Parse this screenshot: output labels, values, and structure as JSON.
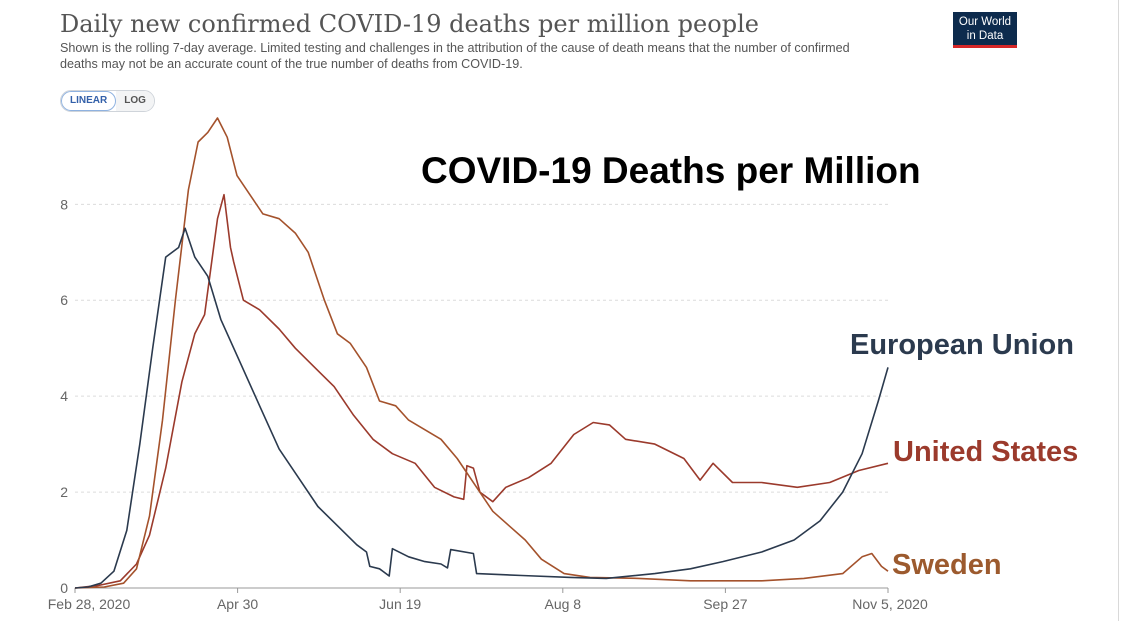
{
  "header": {
    "title": "Daily new confirmed COVID-19 deaths per million people",
    "subtitle": "Shown is the rolling 7-day average. Limited testing and challenges in the attribution of the cause of death means that the number of confirmed deaths may not be an accurate count of the true number of deaths from COVID-19.",
    "logo_line1": "Our World",
    "logo_line2": "in Data"
  },
  "controls": {
    "linear_label": "LINEAR",
    "log_label": "LOG",
    "selected": "LINEAR"
  },
  "overlay": {
    "headline": "COVID-19 Deaths per Million",
    "labels": {
      "eu": "European Union",
      "us": "United States",
      "se": "Sweden"
    }
  },
  "colors": {
    "eu": "#2b3a4e",
    "us": "#9b3a2c",
    "se": "#a4522c",
    "grid": "#dcdcdc",
    "axis_text": "#666666"
  },
  "chart_data": {
    "type": "line",
    "title": "Daily new confirmed COVID-19 deaths per million people",
    "subtitle": "Shown is the rolling 7-day average.",
    "x_axis": {
      "type": "date",
      "range": [
        "2020-02-28",
        "2020-11-05"
      ],
      "tick_labels": [
        "Feb 28, 2020",
        "Apr 30",
        "Jun 19",
        "Aug 8",
        "Sep 27",
        "Nov 5, 2020"
      ]
    },
    "y_axis": {
      "range": [
        0,
        9.8
      ],
      "ticks": [
        0,
        2,
        4,
        6,
        8
      ]
    },
    "grid": true,
    "legend": "inline-labels-right",
    "series": [
      {
        "name": "European Union",
        "key": "eu",
        "points": [
          [
            "2020-02-28",
            0
          ],
          [
            "2020-03-03",
            0.02
          ],
          [
            "2020-03-07",
            0.1
          ],
          [
            "2020-03-11",
            0.35
          ],
          [
            "2020-03-15",
            1.2
          ],
          [
            "2020-03-19",
            3.0
          ],
          [
            "2020-03-23",
            5.0
          ],
          [
            "2020-03-27",
            6.9
          ],
          [
            "2020-03-31",
            7.1
          ],
          [
            "2020-04-02",
            7.5
          ],
          [
            "2020-04-05",
            6.9
          ],
          [
            "2020-04-09",
            6.5
          ],
          [
            "2020-04-13",
            5.6
          ],
          [
            "2020-04-19",
            4.7
          ],
          [
            "2020-04-25",
            3.8
          ],
          [
            "2020-05-01",
            2.9
          ],
          [
            "2020-05-07",
            2.3
          ],
          [
            "2020-05-13",
            1.7
          ],
          [
            "2020-05-19",
            1.3
          ],
          [
            "2020-05-25",
            0.9
          ],
          [
            "2020-05-28",
            0.75
          ],
          [
            "2020-05-29",
            0.45
          ],
          [
            "2020-06-01",
            0.4
          ],
          [
            "2020-06-04",
            0.25
          ],
          [
            "2020-06-05",
            0.82
          ],
          [
            "2020-06-10",
            0.65
          ],
          [
            "2020-06-15",
            0.55
          ],
          [
            "2020-06-20",
            0.5
          ],
          [
            "2020-06-22",
            0.42
          ],
          [
            "2020-06-23",
            0.8
          ],
          [
            "2020-06-30",
            0.72
          ],
          [
            "2020-07-01",
            0.3
          ],
          [
            "2020-07-15",
            0.26
          ],
          [
            "2020-07-30",
            0.22
          ],
          [
            "2020-08-10",
            0.2
          ],
          [
            "2020-08-25",
            0.3
          ],
          [
            "2020-09-05",
            0.4
          ],
          [
            "2020-09-15",
            0.55
          ],
          [
            "2020-09-27",
            0.75
          ],
          [
            "2020-10-07",
            1.0
          ],
          [
            "2020-10-15",
            1.4
          ],
          [
            "2020-10-22",
            2.0
          ],
          [
            "2020-10-28",
            2.8
          ],
          [
            "2020-11-02",
            3.9
          ],
          [
            "2020-11-05",
            4.6
          ]
        ]
      },
      {
        "name": "United States",
        "key": "us",
        "points": [
          [
            "2020-02-28",
            0
          ],
          [
            "2020-03-06",
            0.05
          ],
          [
            "2020-03-13",
            0.15
          ],
          [
            "2020-03-18",
            0.5
          ],
          [
            "2020-03-22",
            1.1
          ],
          [
            "2020-03-27",
            2.5
          ],
          [
            "2020-04-01",
            4.3
          ],
          [
            "2020-04-05",
            5.3
          ],
          [
            "2020-04-08",
            5.7
          ],
          [
            "2020-04-12",
            7.7
          ],
          [
            "2020-04-14",
            8.2
          ],
          [
            "2020-04-16",
            7.1
          ],
          [
            "2020-04-17",
            6.8
          ],
          [
            "2020-04-20",
            6.0
          ],
          [
            "2020-04-25",
            5.8
          ],
          [
            "2020-05-01",
            5.4
          ],
          [
            "2020-05-06",
            5.0
          ],
          [
            "2020-05-12",
            4.6
          ],
          [
            "2020-05-18",
            4.2
          ],
          [
            "2020-05-24",
            3.6
          ],
          [
            "2020-05-30",
            3.1
          ],
          [
            "2020-06-05",
            2.8
          ],
          [
            "2020-06-12",
            2.6
          ],
          [
            "2020-06-18",
            2.1
          ],
          [
            "2020-06-24",
            1.9
          ],
          [
            "2020-06-27",
            1.85
          ],
          [
            "2020-06-28",
            2.55
          ],
          [
            "2020-06-30",
            2.5
          ],
          [
            "2020-07-02",
            2.0
          ],
          [
            "2020-07-06",
            1.8
          ],
          [
            "2020-07-10",
            2.1
          ],
          [
            "2020-07-17",
            2.3
          ],
          [
            "2020-07-24",
            2.6
          ],
          [
            "2020-07-31",
            3.2
          ],
          [
            "2020-08-06",
            3.45
          ],
          [
            "2020-08-11",
            3.4
          ],
          [
            "2020-08-16",
            3.1
          ],
          [
            "2020-08-25",
            3.0
          ],
          [
            "2020-09-03",
            2.7
          ],
          [
            "2020-09-08",
            2.25
          ],
          [
            "2020-09-12",
            2.6
          ],
          [
            "2020-09-18",
            2.2
          ],
          [
            "2020-09-27",
            2.2
          ],
          [
            "2020-10-08",
            2.1
          ],
          [
            "2020-10-18",
            2.2
          ],
          [
            "2020-10-27",
            2.45
          ],
          [
            "2020-11-05",
            2.6
          ]
        ]
      },
      {
        "name": "Sweden",
        "key": "se",
        "points": [
          [
            "2020-02-28",
            0
          ],
          [
            "2020-03-08",
            0.02
          ],
          [
            "2020-03-14",
            0.1
          ],
          [
            "2020-03-18",
            0.4
          ],
          [
            "2020-03-22",
            1.5
          ],
          [
            "2020-03-26",
            3.5
          ],
          [
            "2020-03-30",
            6.0
          ],
          [
            "2020-04-03",
            8.3
          ],
          [
            "2020-04-06",
            9.3
          ],
          [
            "2020-04-09",
            9.5
          ],
          [
            "2020-04-12",
            9.8
          ],
          [
            "2020-04-15",
            9.4
          ],
          [
            "2020-04-18",
            8.6
          ],
          [
            "2020-04-22",
            8.2
          ],
          [
            "2020-04-26",
            7.8
          ],
          [
            "2020-05-01",
            7.7
          ],
          [
            "2020-05-06",
            7.4
          ],
          [
            "2020-05-10",
            7.0
          ],
          [
            "2020-05-15",
            6.0
          ],
          [
            "2020-05-19",
            5.3
          ],
          [
            "2020-05-23",
            5.1
          ],
          [
            "2020-05-28",
            4.6
          ],
          [
            "2020-06-01",
            3.9
          ],
          [
            "2020-06-06",
            3.8
          ],
          [
            "2020-06-10",
            3.5
          ],
          [
            "2020-06-15",
            3.3
          ],
          [
            "2020-06-20",
            3.1
          ],
          [
            "2020-06-25",
            2.7
          ],
          [
            "2020-07-01",
            2.1
          ],
          [
            "2020-07-06",
            1.6
          ],
          [
            "2020-07-11",
            1.3
          ],
          [
            "2020-07-16",
            1.0
          ],
          [
            "2020-07-21",
            0.6
          ],
          [
            "2020-07-28",
            0.3
          ],
          [
            "2020-08-05",
            0.22
          ],
          [
            "2020-08-20",
            0.2
          ],
          [
            "2020-09-05",
            0.15
          ],
          [
            "2020-09-27",
            0.15
          ],
          [
            "2020-10-10",
            0.2
          ],
          [
            "2020-10-22",
            0.3
          ],
          [
            "2020-10-28",
            0.65
          ],
          [
            "2020-10-31",
            0.72
          ],
          [
            "2020-11-03",
            0.45
          ],
          [
            "2020-11-05",
            0.35
          ]
        ]
      }
    ]
  }
}
